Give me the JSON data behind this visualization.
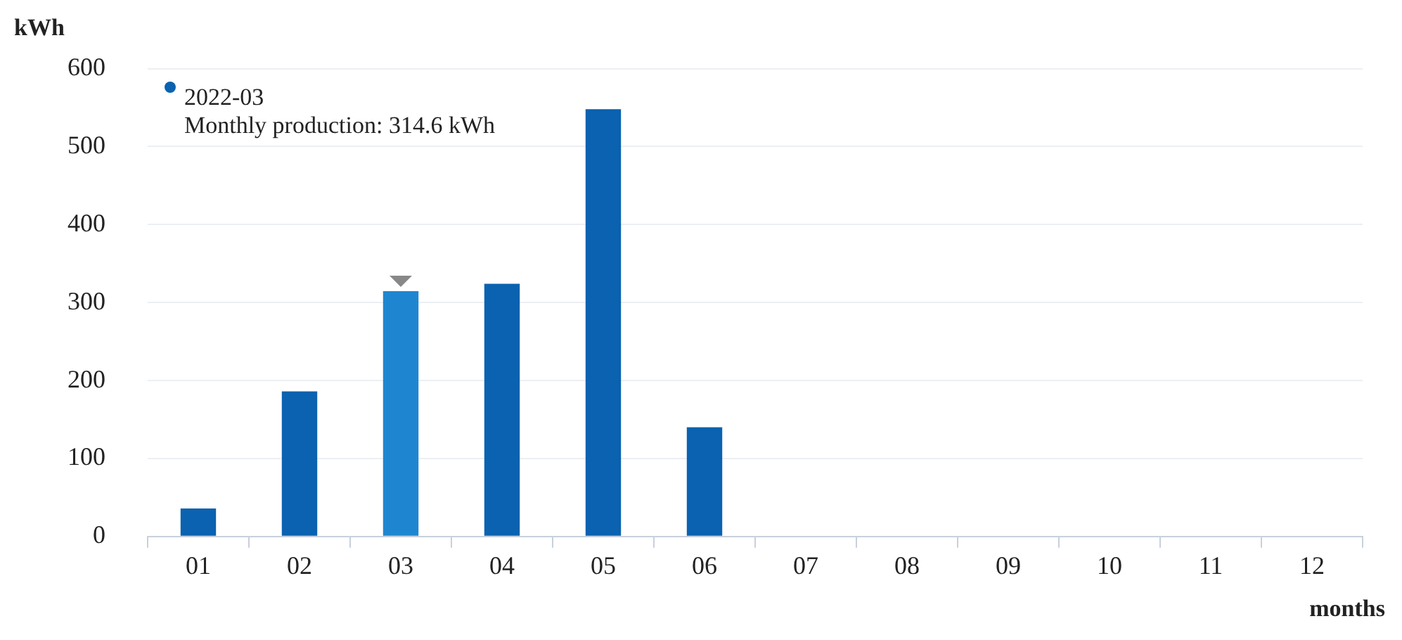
{
  "chart_data": {
    "type": "bar",
    "xlabel": "months",
    "ylabel": "kWh",
    "categories": [
      "01",
      "02",
      "03",
      "04",
      "05",
      "06",
      "07",
      "08",
      "09",
      "10",
      "11",
      "12"
    ],
    "values": [
      36,
      186,
      314.6,
      324,
      548,
      140,
      null,
      null,
      null,
      null,
      null,
      null
    ],
    "colors": [
      "#0a62b0",
      "#0a62b0",
      "#1e86d0",
      "#0a62b0",
      "#0a62b0",
      "#0a62b0",
      "#0a62b0",
      "#0a62b0",
      "#0a62b0",
      "#0a62b0",
      "#0a62b0",
      "#0a62b0"
    ],
    "ylim": [
      0,
      600
    ],
    "yticks": [
      0,
      100,
      200,
      300,
      400,
      500,
      600
    ],
    "grid": "y",
    "annotations": [
      "2022-03",
      "Monthly production: 314.6 kWh"
    ]
  }
}
